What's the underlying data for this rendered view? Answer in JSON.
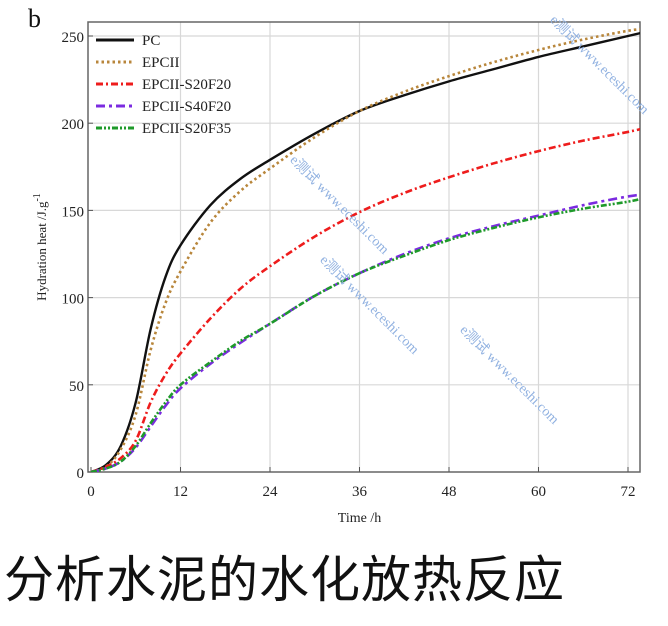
{
  "chart_data": {
    "type": "line",
    "panel_label": "b",
    "title": "",
    "xlabel": "Time /h",
    "ylabel": "Hydration heat /J.g",
    "ylabel_superscript": "-1",
    "xlim": [
      0,
      73.5
    ],
    "ylim": [
      0,
      258
    ],
    "xticks": [
      0,
      12,
      24,
      36,
      48,
      60,
      72
    ],
    "yticks": [
      0,
      50,
      100,
      150,
      200,
      250
    ],
    "grid": true,
    "legend_position": "top-left",
    "x": [
      0,
      2,
      4,
      6,
      8,
      10,
      12,
      16,
      20,
      24,
      30,
      36,
      42,
      48,
      54,
      60,
      66,
      72,
      74
    ],
    "series": [
      {
        "name": "PC",
        "color": "#111111",
        "style": "solid",
        "values": [
          0,
          4,
          15,
          40,
          82,
          112,
          130,
          153,
          168,
          179,
          194,
          207,
          216,
          224,
          231,
          238,
          244,
          250,
          252
        ]
      },
      {
        "name": "EPCII",
        "color": "#b8863b",
        "style": "dotted",
        "values": [
          0,
          3,
          13,
          33,
          70,
          97,
          115,
          143,
          161,
          174,
          192,
          207,
          218,
          227,
          235,
          242,
          248,
          253,
          254
        ]
      },
      {
        "name": "EPCII-S20F20",
        "color": "#ee1c1c",
        "style": "dashdot",
        "values": [
          0,
          3,
          8,
          18,
          40,
          56,
          68,
          88,
          105,
          118,
          135,
          149,
          160,
          169,
          177,
          184,
          190,
          195,
          197
        ]
      },
      {
        "name": "EPCII-S40F20",
        "color": "#7b2be0",
        "style": "dashdot-long",
        "values": [
          0,
          2,
          6,
          14,
          26,
          38,
          48,
          62,
          74,
          85,
          101,
          114,
          125,
          134,
          141,
          147,
          153,
          158,
          159
        ]
      },
      {
        "name": "EPCII-S20F35",
        "color": "#1e9a2a",
        "style": "dashdotdot",
        "values": [
          0,
          2,
          6,
          15,
          28,
          40,
          50,
          63,
          75,
          85,
          101,
          114,
          124,
          133,
          140,
          146,
          151,
          155,
          157
        ]
      }
    ]
  },
  "caption": "分析水泥的水化放热反应",
  "watermark": "e测试 www.eceshi.com"
}
